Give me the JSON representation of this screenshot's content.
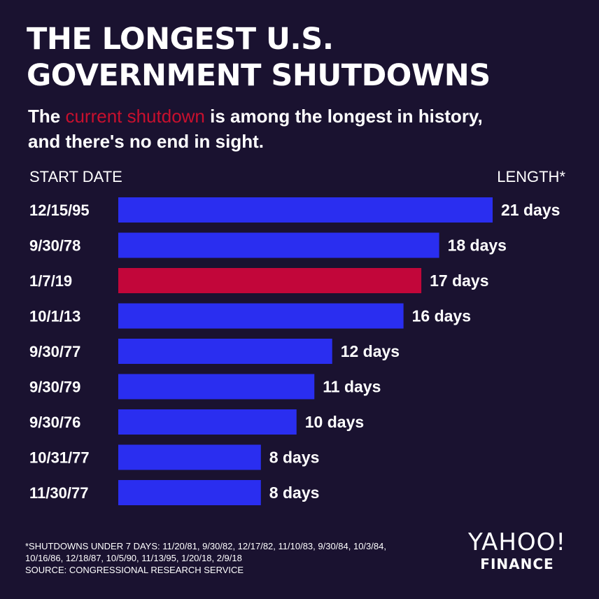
{
  "header": {
    "title_line1": "THE LONGEST U.S.",
    "title_line2": "GOVERNMENT SHUTDOWNS",
    "subtitle_before": "The ",
    "subtitle_highlight": "current shutdown",
    "subtitle_after": " is among the longest in history,",
    "subtitle_line2": "and there's no end in sight."
  },
  "columns": {
    "start_label": "START DATE",
    "length_label": "LENGTH*"
  },
  "colors": {
    "background": "#1a1230",
    "bar": "#2a2ef0",
    "highlight": "#c2063a",
    "text": "#ffffff"
  },
  "chart_data": {
    "type": "bar",
    "orientation": "horizontal",
    "categories": [
      "12/15/95",
      "9/30/78",
      "1/7/19",
      "10/1/13",
      "9/30/77",
      "9/30/79",
      "9/30/76",
      "10/31/77",
      "11/30/77"
    ],
    "values": [
      21,
      18,
      17,
      16,
      12,
      11,
      10,
      8,
      8
    ],
    "value_labels": [
      "21 days",
      "18 days",
      "17 days",
      "16 days",
      "12 days",
      "11 days",
      "10 days",
      "8 days",
      "8 days"
    ],
    "highlight_index": 2,
    "xlim": [
      0,
      21
    ],
    "grid": false
  },
  "footer": {
    "note_line1": "*SHUTDOWNS UNDER 7 DAYS: 11/20/81, 9/30/82, 12/17/82, 11/10/83, 9/30/84, 10/3/84,",
    "note_line2": "10/16/86, 12/18/87, 10/5/90, 11/13/95, 1/20/18, 2/9/18",
    "source": "SOURCE:  CONGRESSIONAL RESEARCH SERVICE",
    "logo_brand": "YAHOO!",
    "logo_sub": "FINANCE"
  }
}
